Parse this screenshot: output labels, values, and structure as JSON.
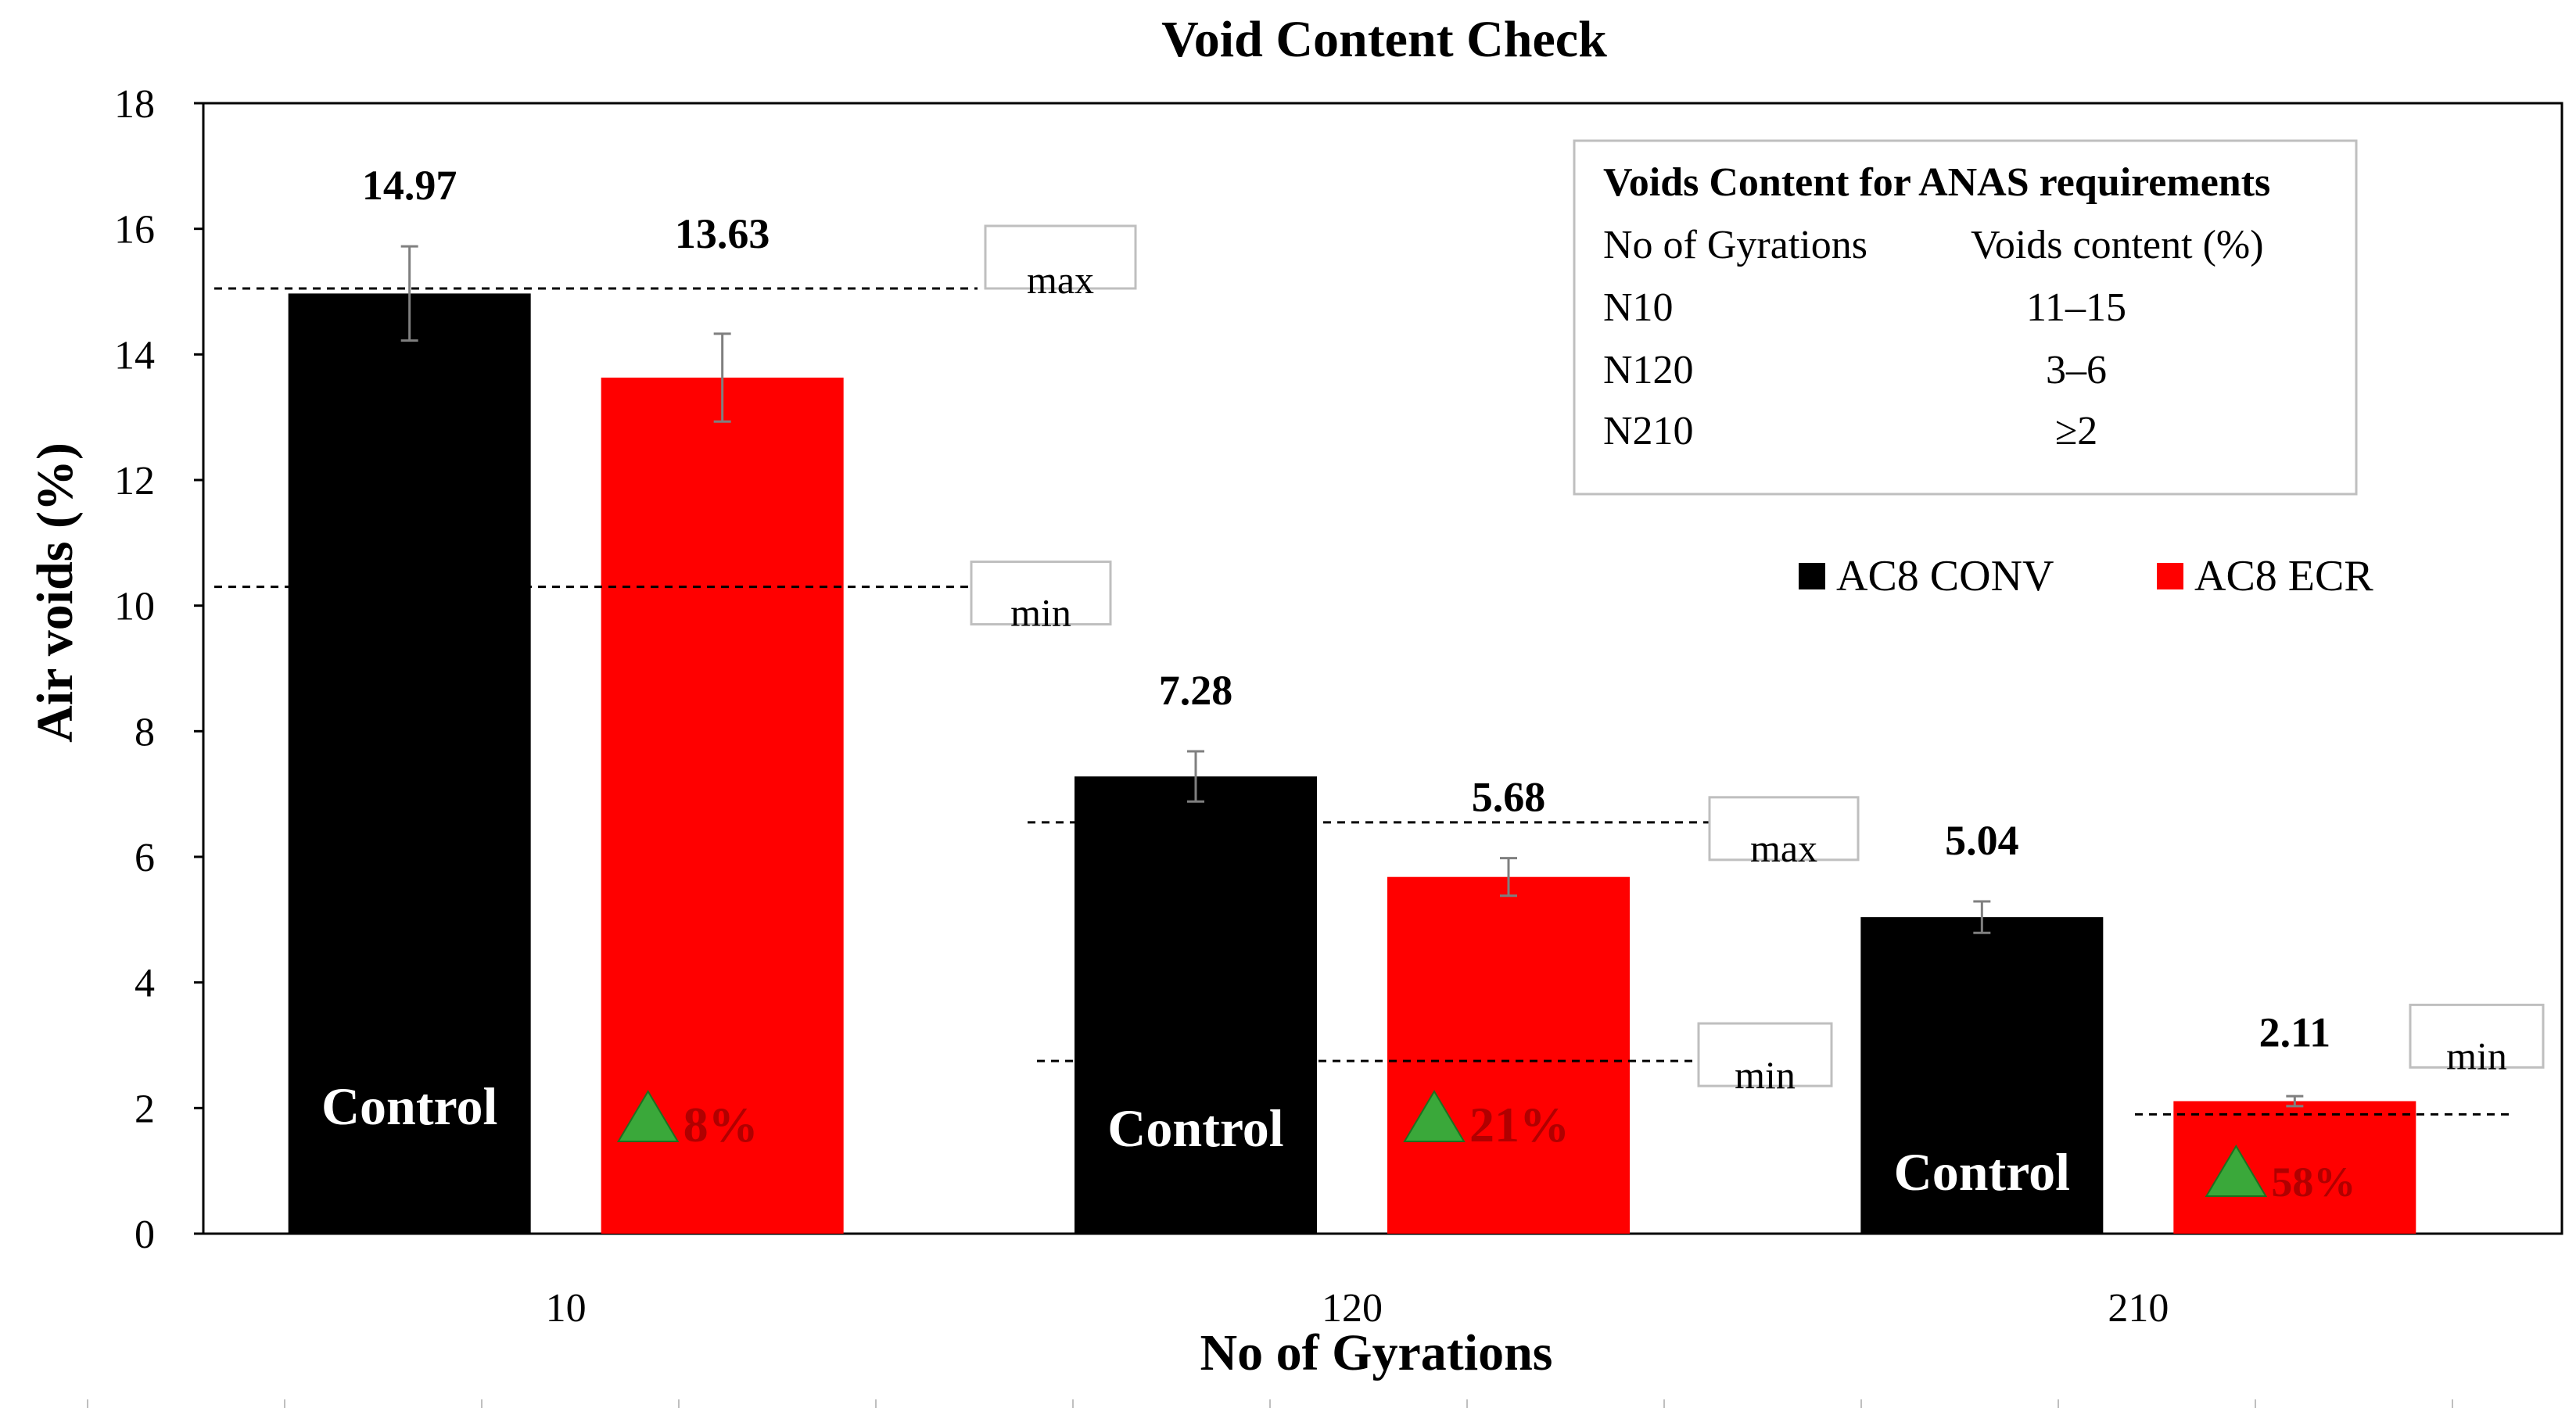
{
  "chart_data": {
    "type": "bar",
    "title": "Void Content Check",
    "xlabel": "No of Gyrations",
    "ylabel": "Air voids (%)",
    "ylim": [
      0,
      18
    ],
    "yticks": [
      0,
      2,
      4,
      6,
      8,
      10,
      12,
      14,
      16,
      18
    ],
    "grid": false,
    "legend_position": "right",
    "categories": [
      "10",
      "120",
      "210"
    ],
    "series": [
      {
        "name": "AC8 CONV",
        "color": "#000000",
        "values": [
          14.97,
          7.28,
          5.04
        ],
        "errors": [
          0.75,
          0.4,
          0.25
        ],
        "data_labels": [
          "14.97",
          "7.28",
          "5.04"
        ],
        "bar_text": [
          "Control",
          "Control",
          "Control"
        ]
      },
      {
        "name": "AC8 ECR",
        "color": "#ff0000",
        "values": [
          13.63,
          5.68,
          2.11
        ],
        "errors": [
          0.7,
          0.3,
          0.08
        ],
        "data_labels": [
          "13.63",
          "5.68",
          "2.11"
        ],
        "bar_text": [
          "8%",
          "21%",
          "58%"
        ]
      }
    ],
    "reference_lines": [
      {
        "group": "10",
        "label": "max",
        "value": 15.05
      },
      {
        "group": "10",
        "label": "min",
        "value": 10.3
      },
      {
        "group": "120",
        "label": "max",
        "value": 6.55
      },
      {
        "group": "120",
        "label": "min",
        "value": 2.75
      },
      {
        "group": "210",
        "label": "min",
        "value": 1.9
      }
    ],
    "requirements_table": {
      "title": "Voids Content for ANAS requirements",
      "headers": [
        "No of Gyrations",
        "Voids content (%)"
      ],
      "rows": [
        [
          "N10",
          "11–15"
        ],
        [
          "N120",
          "3–6"
        ],
        [
          "N210",
          "≥2"
        ]
      ]
    }
  }
}
